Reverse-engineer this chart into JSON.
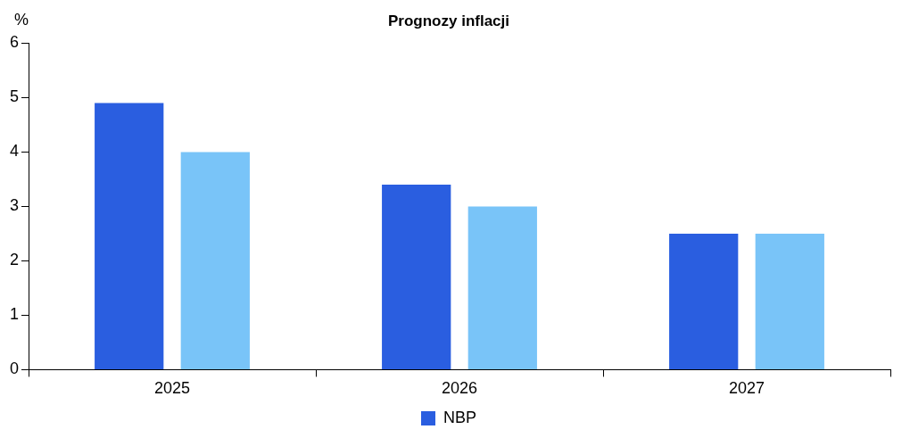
{
  "chart_data": {
    "type": "bar",
    "title": "Prognozy inflacji",
    "ylabel": "%",
    "categories": [
      "2025",
      "2026",
      "2027"
    ],
    "series": [
      {
        "name": "NBP",
        "color": "#2a5ee0",
        "values": [
          4.9,
          3.4,
          2.5
        ]
      },
      {
        "color": "#79c4f8",
        "values": [
          4.0,
          3.0,
          2.5
        ]
      }
    ],
    "ylim": [
      0,
      6
    ],
    "yticks": [
      0,
      1,
      2,
      3,
      4,
      5,
      6
    ],
    "grid": false,
    "legend": "bottom"
  }
}
